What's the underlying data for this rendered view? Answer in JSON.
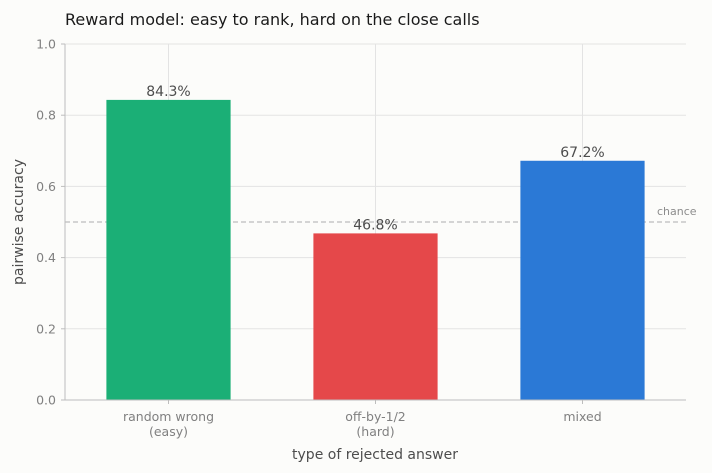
{
  "chart_data": {
    "type": "bar",
    "title": "Reward model: easy to rank, hard on the close calls",
    "xlabel": "type of rejected answer",
    "ylabel": "pairwise accuracy",
    "ylim": [
      0,
      1.0
    ],
    "yticks": [
      "0.0",
      "0.2",
      "0.4",
      "0.6",
      "0.8",
      "1.0"
    ],
    "grid": true,
    "categories": [
      [
        "random wrong",
        "(easy)"
      ],
      [
        "off-by-1/2",
        "(hard)"
      ],
      [
        "mixed"
      ]
    ],
    "values": [
      0.843,
      0.468,
      0.672
    ],
    "value_labels": [
      "84.3%",
      "46.8%",
      "67.2%"
    ],
    "colors": [
      "#1baf76",
      "#e5484a",
      "#2b79d6"
    ],
    "reference_line": {
      "value": 0.5,
      "label": "chance",
      "style": "dashed",
      "color": "#bdbdbd"
    }
  }
}
